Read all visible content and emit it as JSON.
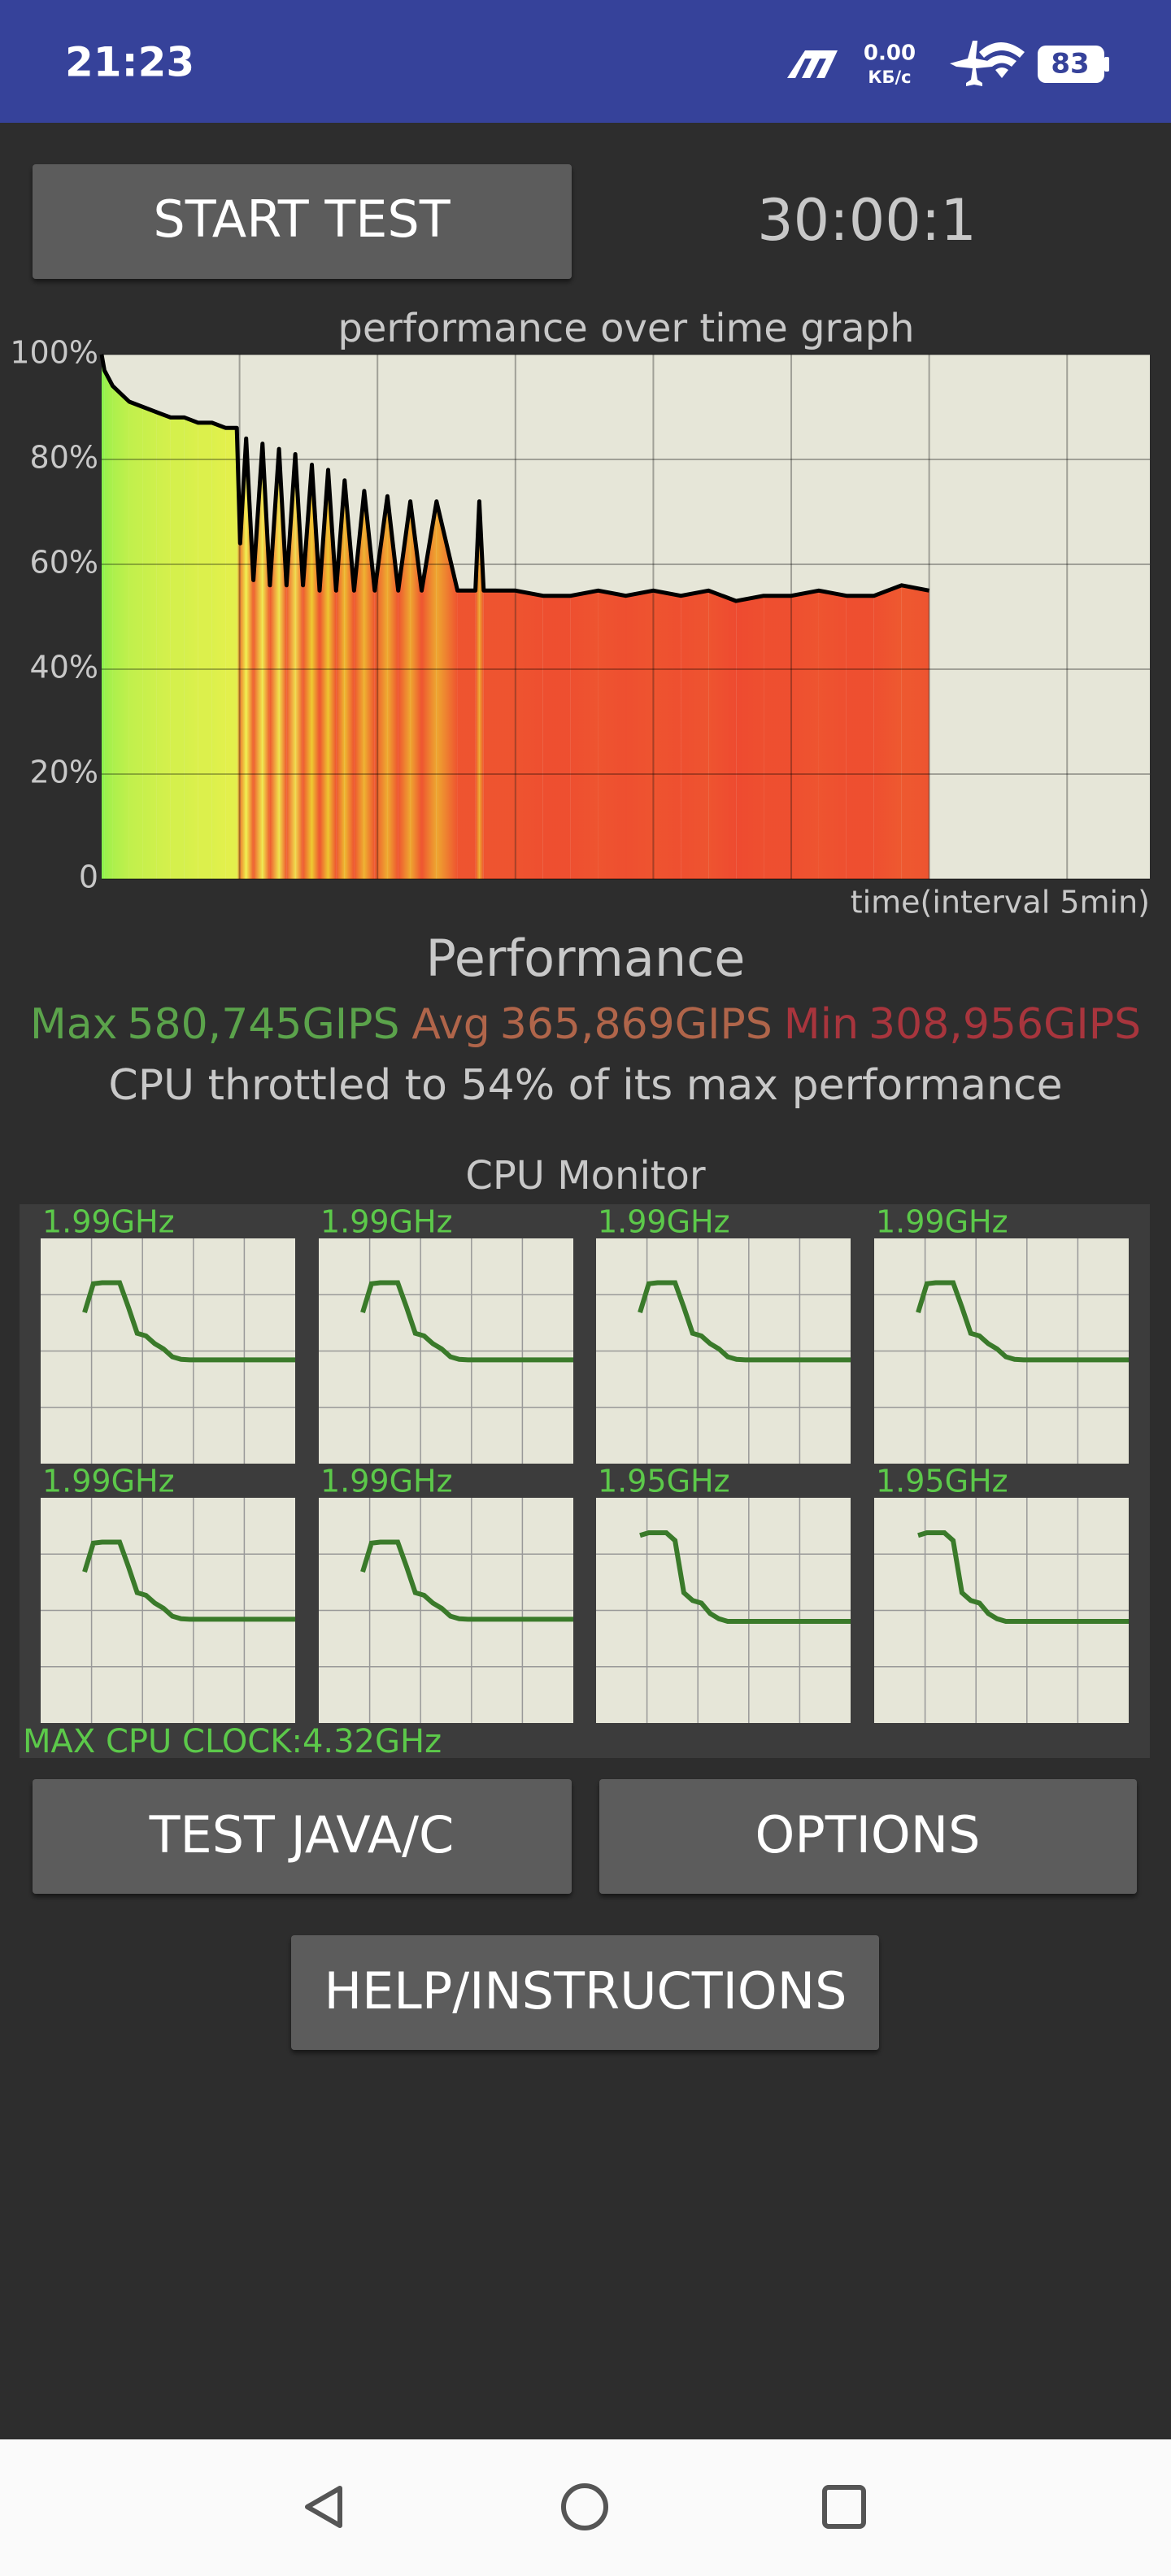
{
  "status_bar": {
    "time": "21:23",
    "net_speed": "0.00",
    "net_unit": "КБ/с",
    "battery": "83"
  },
  "controls": {
    "start_button": "START TEST",
    "timer": "30:00:1"
  },
  "chart_data": {
    "type": "line",
    "title": "performance over time graph",
    "x_label": "time(interval 5min)",
    "xlim": [
      0,
      38
    ],
    "xticks": [
      5,
      10,
      15,
      20,
      25,
      30,
      35
    ],
    "ylim": [
      0,
      100
    ],
    "yticks": [
      {
        "value": 0,
        "label": "0"
      },
      {
        "value": 20,
        "label": "20%"
      },
      {
        "value": 40,
        "label": "40%"
      },
      {
        "value": 60,
        "label": "60%"
      },
      {
        "value": 80,
        "label": "80%"
      },
      {
        "value": 100,
        "label": "100%"
      }
    ],
    "grid": true,
    "background": "#e6e6d8",
    "line_color": "#000000",
    "x": [
      0,
      0.1,
      0.4,
      1,
      1.5,
      2,
      2.5,
      3,
      3.5,
      4,
      4.5,
      4.9,
      5.02,
      5.24,
      5.5,
      5.83,
      6.1,
      6.43,
      6.7,
      7.02,
      7.3,
      7.62,
      7.9,
      8.21,
      8.5,
      8.81,
      9.15,
      9.52,
      9.9,
      10.36,
      10.75,
      11.19,
      11.6,
      12.14,
      12.9,
      13.55,
      13.69,
      13.85,
      15,
      16,
      17,
      18,
      19,
      20,
      21,
      22,
      23,
      24,
      25,
      26,
      27,
      28,
      29,
      30
    ],
    "values": [
      100,
      97,
      94,
      91,
      90,
      89,
      88,
      88,
      87,
      87,
      86,
      86,
      64,
      84,
      57,
      83,
      56,
      82,
      56,
      81,
      56,
      79,
      55,
      78,
      55,
      76,
      55,
      74,
      55,
      73,
      55,
      72,
      55,
      72,
      55,
      55,
      72,
      55,
      55,
      54,
      54,
      55,
      54,
      55,
      54,
      55,
      53,
      54,
      54,
      55,
      54,
      54,
      56,
      55
    ]
  },
  "performance": {
    "title": "Performance",
    "stats": [
      {
        "label": "Max",
        "value": "580,745GIPS",
        "color": "#5ba34b"
      },
      {
        "label": "Avg",
        "value": "365,869GIPS",
        "color": "#b0654a"
      },
      {
        "label": "Min",
        "value": "308,956GIPS",
        "color": "#a8353d"
      }
    ],
    "summary": "CPU throttled to 54% of its max performance"
  },
  "cpu_monitor": {
    "title": "CPU Monitor",
    "ylim": [
      0,
      4.32
    ],
    "line_color": "#3a7a2a",
    "cores": [
      {
        "label": "1.99GHz",
        "values": [
          null,
          null,
          null,
          null,
          null,
          2.9,
          3.45,
          3.47,
          3.47,
          3.47,
          3.0,
          2.5,
          2.45,
          2.3,
          2.2,
          2.05,
          2.0,
          1.99,
          1.99,
          1.99,
          1.99,
          1.99,
          1.99,
          1.99,
          1.99,
          1.99,
          1.99,
          1.99,
          1.99,
          1.99
        ]
      },
      {
        "label": "1.99GHz",
        "values": [
          null,
          null,
          null,
          null,
          null,
          2.9,
          3.45,
          3.47,
          3.47,
          3.47,
          3.0,
          2.5,
          2.45,
          2.3,
          2.2,
          2.05,
          2.0,
          1.99,
          1.99,
          1.99,
          1.99,
          1.99,
          1.99,
          1.99,
          1.99,
          1.99,
          1.99,
          1.99,
          1.99,
          1.99
        ]
      },
      {
        "label": "1.99GHz",
        "values": [
          null,
          null,
          null,
          null,
          null,
          2.9,
          3.45,
          3.47,
          3.47,
          3.47,
          3.0,
          2.5,
          2.45,
          2.3,
          2.2,
          2.05,
          2.0,
          1.99,
          1.99,
          1.99,
          1.99,
          1.99,
          1.99,
          1.99,
          1.99,
          1.99,
          1.99,
          1.99,
          1.99,
          1.99
        ]
      },
      {
        "label": "1.99GHz",
        "values": [
          null,
          null,
          null,
          null,
          null,
          2.9,
          3.45,
          3.47,
          3.47,
          3.47,
          3.0,
          2.5,
          2.45,
          2.3,
          2.2,
          2.05,
          2.0,
          1.99,
          1.99,
          1.99,
          1.99,
          1.99,
          1.99,
          1.99,
          1.99,
          1.99,
          1.99,
          1.99,
          1.99,
          1.99
        ]
      },
      {
        "label": "1.99GHz",
        "values": [
          null,
          null,
          null,
          null,
          null,
          2.9,
          3.45,
          3.47,
          3.47,
          3.47,
          3.0,
          2.5,
          2.45,
          2.3,
          2.2,
          2.05,
          2.0,
          1.99,
          1.99,
          1.99,
          1.99,
          1.99,
          1.99,
          1.99,
          1.99,
          1.99,
          1.99,
          1.99,
          1.99,
          1.99
        ]
      },
      {
        "label": "1.99GHz",
        "values": [
          null,
          null,
          null,
          null,
          null,
          2.9,
          3.45,
          3.47,
          3.47,
          3.47,
          3.0,
          2.5,
          2.45,
          2.3,
          2.2,
          2.05,
          2.0,
          1.99,
          1.99,
          1.99,
          1.99,
          1.99,
          1.99,
          1.99,
          1.99,
          1.99,
          1.99,
          1.99,
          1.99,
          1.99
        ]
      },
      {
        "label": "1.95GHz",
        "values": [
          null,
          null,
          null,
          null,
          null,
          3.6,
          3.65,
          3.65,
          3.65,
          3.5,
          2.5,
          2.35,
          2.3,
          2.1,
          2.0,
          1.95,
          1.95,
          1.95,
          1.95,
          1.95,
          1.95,
          1.95,
          1.95,
          1.95,
          1.95,
          1.95,
          1.95,
          1.95,
          1.95,
          1.95
        ]
      },
      {
        "label": "1.95GHz",
        "values": [
          null,
          null,
          null,
          null,
          null,
          3.6,
          3.65,
          3.65,
          3.65,
          3.5,
          2.5,
          2.35,
          2.3,
          2.1,
          2.0,
          1.95,
          1.95,
          1.95,
          1.95,
          1.95,
          1.95,
          1.95,
          1.95,
          1.95,
          1.95,
          1.95,
          1.95,
          1.95,
          1.95,
          1.95
        ]
      }
    ],
    "max_clock": "MAX CPU CLOCK:4.32GHz"
  },
  "buttons": {
    "test_java": "TEST JAVA/C",
    "options": "OPTIONS",
    "help": "HELP/INSTRUCTIONS"
  }
}
